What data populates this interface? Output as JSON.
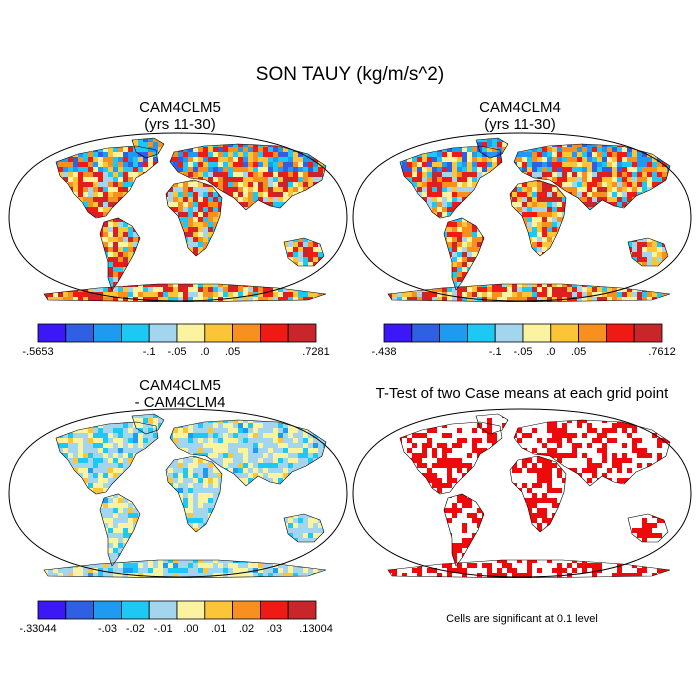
{
  "figure": {
    "title": "SON TAUY (kg/m/s^2)"
  },
  "panels": [
    {
      "title_line1": "CAM4CLM5",
      "title_line2": "(yrs 11-30)",
      "colorbar_labels": [
        "-.5653",
        "-.1",
        "-.05",
        ".0",
        ".05",
        ".7281"
      ]
    },
    {
      "title_line1": "CAM4CLM4",
      "title_line2": "(yrs 11-30)",
      "colorbar_labels": [
        "-.438",
        "-.1",
        "-.05",
        ".0",
        ".05",
        ".7612"
      ]
    },
    {
      "title_line1": "CAM4CLM5",
      "title_line2": "- CAM4CLM4",
      "colorbar_labels": [
        "-.33044",
        "-.03",
        "-.02",
        "-.01",
        ".00",
        ".01",
        ".02",
        ".03",
        ".13004"
      ]
    },
    {
      "title_line1": "T-Test of two Case means at each grid point",
      "note": "Cells are significant at 0.1 level"
    }
  ],
  "colors": {
    "scale": [
      "#3b18f5",
      "#2f5fe3",
      "#1e9bf0",
      "#1ec8f5",
      "#a3d6ee",
      "#fbf3a0",
      "#fbc537",
      "#f7901e",
      "#ef1a14",
      "#c8262b"
    ],
    "significant": "#ee0a0a",
    "land": "#ffffff",
    "outline": "#000000"
  }
}
